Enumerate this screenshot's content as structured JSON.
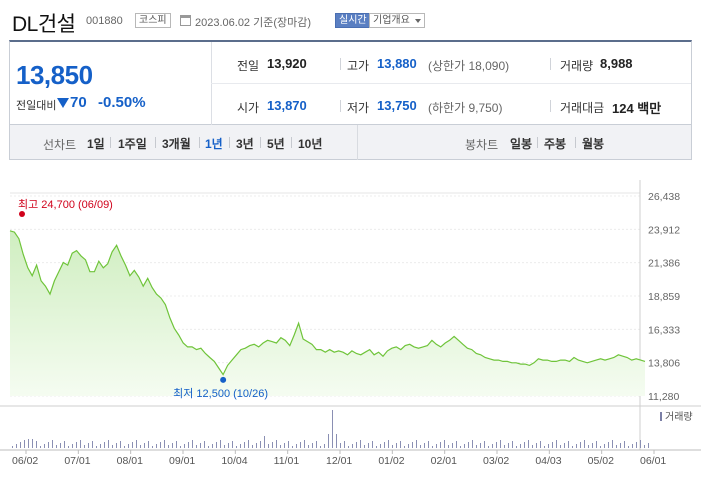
{
  "header": {
    "title": "DL건설",
    "code": "001880",
    "market_badge": "코스피",
    "date": "2023.06.02 기준(장마감)",
    "live_badge": "실시간",
    "info_button": "기업개요"
  },
  "summary": {
    "price": "13,850",
    "change_label": "전일대비",
    "change": "70",
    "change_pct": "-0.50%",
    "prev_close_label": "전일",
    "prev_close": "13,920",
    "high_label": "고가",
    "high": "13,880",
    "upper_limit": "(상한가 18,090)",
    "volume_label": "거래량",
    "volume": "8,988",
    "open_label": "시가",
    "open": "13,870",
    "low_label": "저가",
    "low": "13,750",
    "lower_limit": "(하한가 9,750)",
    "amount_label": "거래대금",
    "amount": "124 백만"
  },
  "periods": {
    "line_label": "선차트",
    "line_options": [
      "1일",
      "1주일",
      "3개월",
      "1년",
      "3년",
      "5년",
      "10년"
    ],
    "active": "1년",
    "candle_label": "봉차트",
    "candle_options": [
      "일봉",
      "주봉",
      "월봉"
    ]
  },
  "colors": {
    "accent": "#1560c8",
    "up": "#d0021b",
    "line": "#6fc43a"
  },
  "chart_data": {
    "type": "area",
    "ylim": [
      11280,
      26438
    ],
    "yticks": [
      "26,438",
      "23,912",
      "21,386",
      "18,859",
      "16,333",
      "13,806",
      "11,280"
    ],
    "xticks": [
      "06/02",
      "07/01",
      "08/01",
      "09/01",
      "10/04",
      "11/01",
      "12/01",
      "01/02",
      "02/01",
      "03/02",
      "04/03",
      "05/02",
      "06/01"
    ],
    "high_annotation": "최고 24,700 (06/09)",
    "low_annotation": "최저 12,500 (10/26)",
    "high": {
      "x": "06/09",
      "y": 24700
    },
    "low": {
      "x": "10/26",
      "y": 12500
    },
    "series": [
      {
        "values": [
          23800,
          23700,
          23200,
          22000,
          21000,
          20400,
          21200,
          20000,
          19600,
          19000,
          20000,
          20700,
          21400,
          21200,
          22100,
          22300,
          21900,
          21600,
          20700,
          20700,
          21500,
          21000,
          21300,
          22200,
          22700,
          21900,
          21200,
          20400,
          20800,
          20300,
          19600,
          20200,
          19500,
          19000,
          18700,
          18200,
          17200,
          16400,
          15900,
          15300,
          15000,
          15000,
          14800,
          14900,
          14500,
          14200,
          13900,
          13400,
          12900,
          13600,
          14000,
          14400,
          14800,
          14900,
          15100,
          15200,
          15000,
          15300,
          15500,
          15400,
          15300,
          15700,
          15500,
          15100,
          15900,
          16800,
          15600,
          15400,
          15200,
          14800,
          14800,
          14600,
          14800,
          14600,
          14700,
          14600,
          14400,
          14700,
          14500,
          14400,
          14600,
          14800,
          14400,
          14600,
          14300,
          14700,
          14900,
          15000,
          14800,
          15100,
          15200,
          15000,
          14900,
          15000,
          15100,
          15500,
          15200,
          15000,
          15300,
          15500,
          15800,
          15500,
          15200,
          14900,
          14800,
          14500,
          14400,
          14200,
          14100,
          14000,
          14000,
          13900,
          13900,
          13800,
          13800,
          13700,
          13700,
          13600,
          13800,
          14100,
          14000,
          14000,
          13900,
          13900,
          14000,
          14000,
          13900,
          14200,
          14000,
          13900,
          13800,
          13900,
          14000,
          14100,
          14000,
          14100,
          14200,
          14400,
          14300,
          14200,
          14000,
          14100,
          14000,
          13900
        ]
      }
    ],
    "volume_label": "거래량"
  }
}
